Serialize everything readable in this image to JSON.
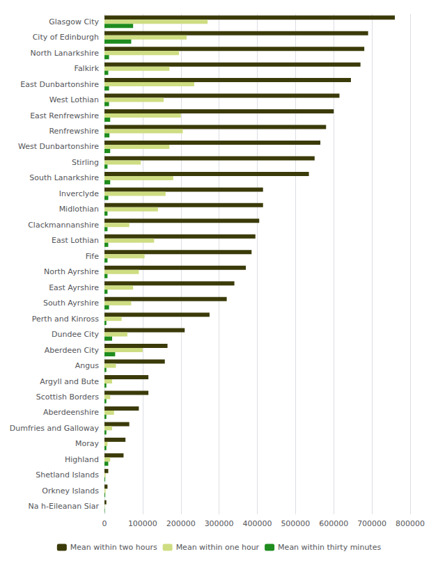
{
  "chart_data": {
    "type": "bar",
    "orientation": "horizontal",
    "categories": [
      "Glasgow City",
      "City of Edinburgh",
      "North Lanarkshire",
      "Falkirk",
      "East Dunbartonshire",
      "West Lothian",
      "East Renfrewshire",
      "Renfrewshire",
      "West Dunbartonshire",
      "Stirling",
      "South Lanarkshire",
      "Inverclyde",
      "Midlothian",
      "Clackmannanshire",
      "East Lothian",
      "Fife",
      "North Ayrshire",
      "East Ayrshire",
      "South Ayrshire",
      "Perth and Kinross",
      "Dundee City",
      "Aberdeen City",
      "Angus",
      "Argyll and Bute",
      "Scottish Borders",
      "Aberdeenshire",
      "Dumfries and Galloway",
      "Moray",
      "Highland",
      "Shetland Islands",
      "Orkney Islands",
      "Na h-Eileanan Siar"
    ],
    "series": [
      {
        "name": "Mean within two hours",
        "color": "#3b3b0a",
        "values": [
          760000,
          690000,
          680000,
          670000,
          645000,
          615000,
          600000,
          580000,
          565000,
          550000,
          535000,
          415000,
          415000,
          405000,
          395000,
          385000,
          370000,
          340000,
          320000,
          275000,
          210000,
          165000,
          158000,
          115000,
          115000,
          90000,
          65000,
          55000,
          50000,
          10000,
          8000,
          5000
        ]
      },
      {
        "name": "Mean within one hour",
        "color": "#cedd82",
        "values": [
          270000,
          215000,
          195000,
          170000,
          235000,
          155000,
          200000,
          205000,
          170000,
          95000,
          180000,
          160000,
          140000,
          65000,
          130000,
          105000,
          90000,
          75000,
          70000,
          45000,
          60000,
          100000,
          30000,
          20000,
          15000,
          25000,
          20000,
          8000,
          15000,
          3000,
          3000,
          1000
        ]
      },
      {
        "name": "Mean within thirty minutes",
        "color": "#1e8c1e",
        "values": [
          75000,
          70000,
          12000,
          10000,
          12000,
          12000,
          15000,
          13000,
          15000,
          8000,
          15000,
          10000,
          8000,
          8000,
          10000,
          8000,
          8000,
          8000,
          12000,
          5000,
          20000,
          28000,
          5000,
          5000,
          5000,
          5000,
          5000,
          5000,
          10000,
          2000,
          2000,
          1000
        ]
      }
    ],
    "xlim": [
      0,
      800000
    ],
    "xticks": [
      0,
      100000,
      200000,
      300000,
      400000,
      500000,
      600000,
      700000,
      800000
    ],
    "grid": true,
    "legend": "bottom"
  }
}
